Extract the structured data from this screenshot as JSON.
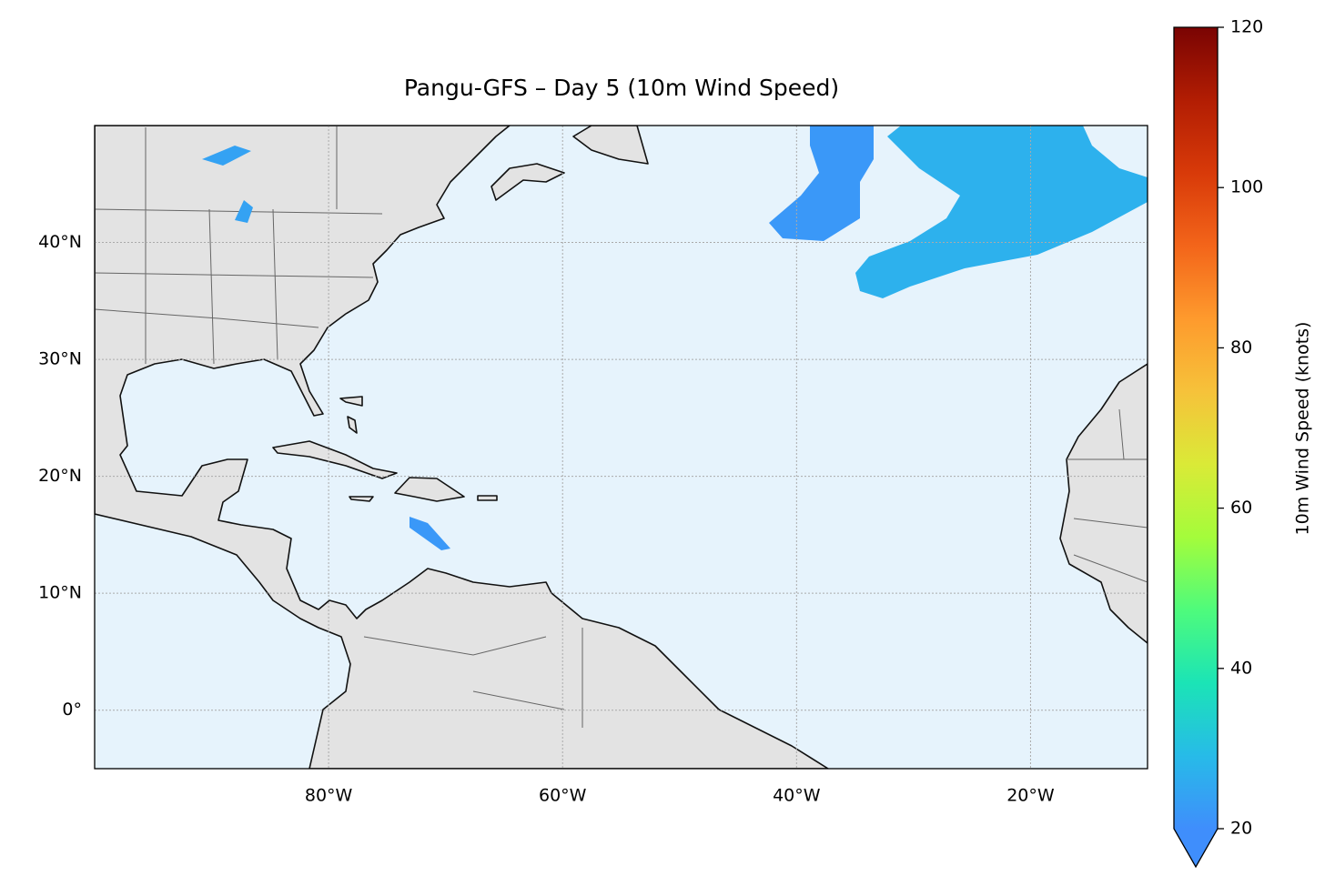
{
  "chart_data": {
    "type": "map",
    "title": "Pangu-GFS – Day 5 (10m Wind Speed)",
    "xlim": [
      -100,
      -10
    ],
    "ylim": [
      -5,
      50
    ],
    "xticks": [
      {
        "value": -80,
        "label": "80°W"
      },
      {
        "value": -60,
        "label": "60°W"
      },
      {
        "value": -40,
        "label": "40°W"
      },
      {
        "value": -20,
        "label": "20°W"
      }
    ],
    "yticks": [
      {
        "value": 0,
        "label": "0°"
      },
      {
        "value": 10,
        "label": "10°N"
      },
      {
        "value": 20,
        "label": "20°N"
      },
      {
        "value": 30,
        "label": "30°N"
      },
      {
        "value": 40,
        "label": "40°N"
      }
    ],
    "grid": true,
    "values": [
      22,
      27,
      22,
      24,
      24
    ],
    "colorbar": {
      "label": "10m Wind Speed (knots)",
      "lim": [
        20,
        120
      ],
      "ticks": [
        20,
        40,
        60,
        80,
        100,
        120
      ],
      "extend": "min",
      "colors": [
        "#3f8efc",
        "#27bbe8",
        "#1be4b6",
        "#4efb7c",
        "#a4fc3b",
        "#daea37",
        "#f6c23a",
        "#fe9a2d",
        "#f3651a",
        "#d83a09",
        "#b21d03",
        "#7a0403"
      ]
    },
    "land_color": "#e3e3e3",
    "ocean_color": "#e6f3fc"
  }
}
